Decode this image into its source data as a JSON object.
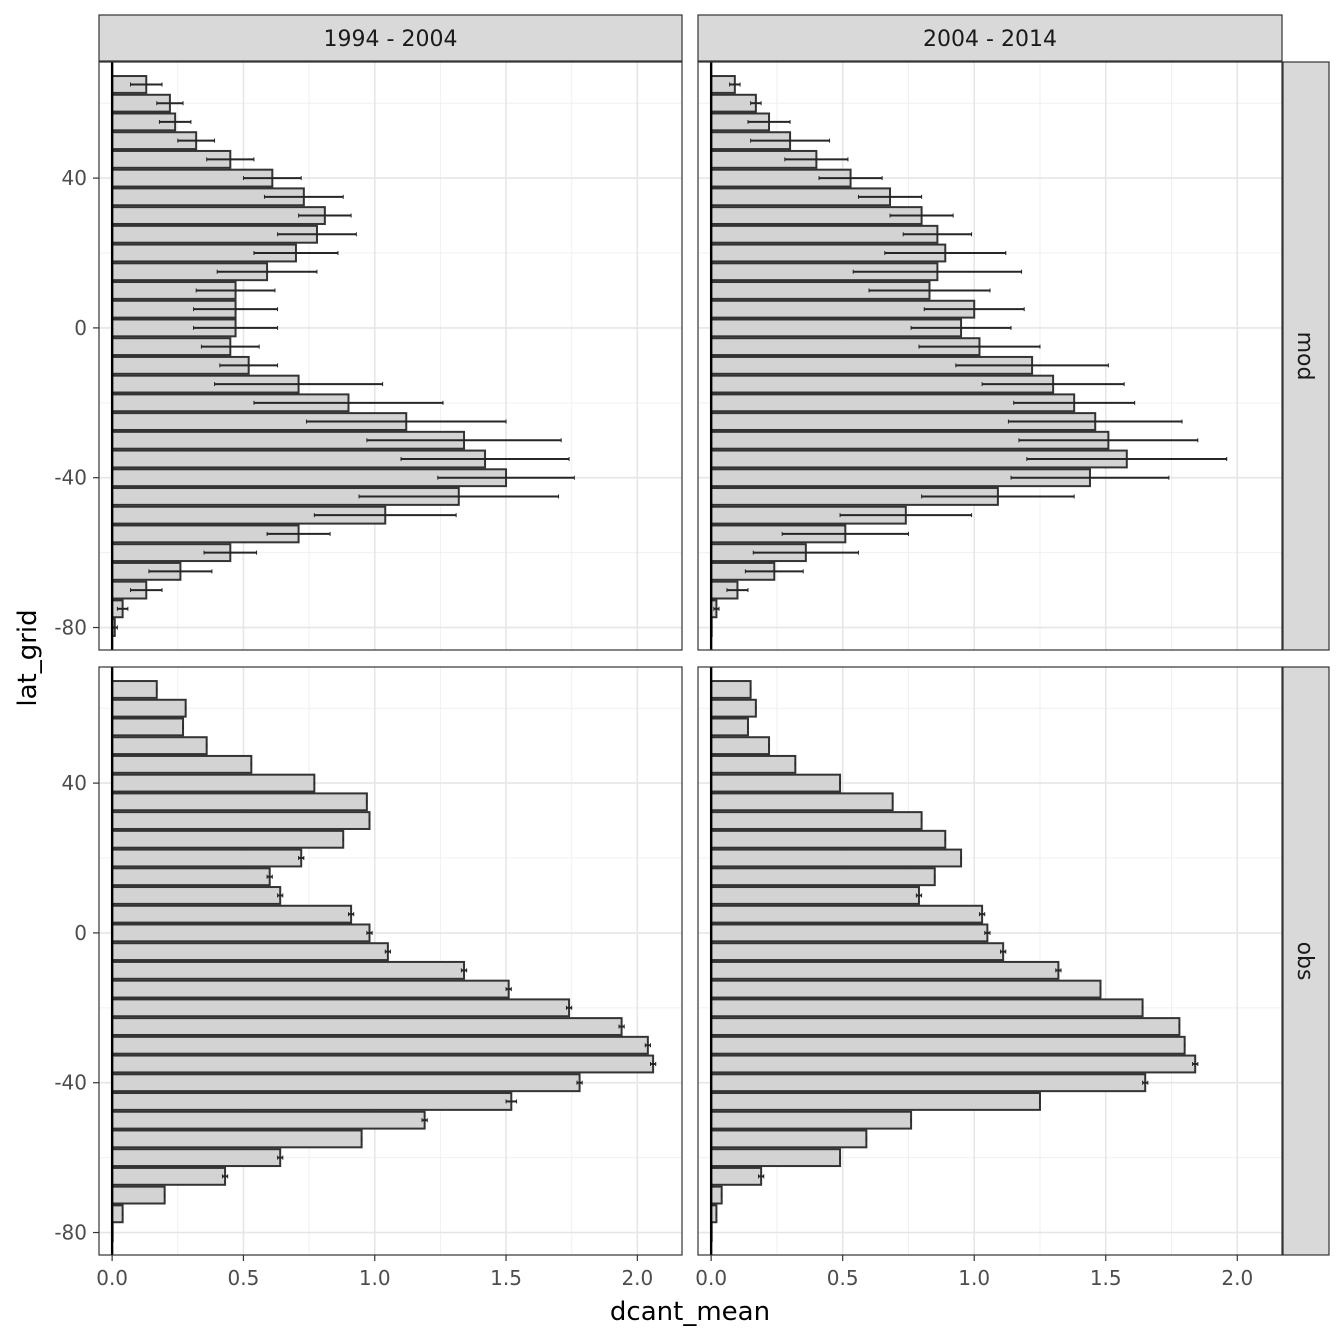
{
  "chart_data": {
    "type": "bar",
    "orientation": "horizontal",
    "facet": "grid",
    "xlabel": "dcant_mean",
    "ylabel": "lat_grid",
    "xlim": [
      -0.05,
      2.17
    ],
    "ylim": [
      -86,
      71
    ],
    "x_ticks": [
      0.0,
      0.5,
      1.0,
      1.5,
      2.0
    ],
    "x_tick_labels": [
      "0.0",
      "0.5",
      "1.0",
      "1.5",
      "2.0"
    ],
    "y_ticks": [
      -80,
      -40,
      0,
      40
    ],
    "y_tick_labels": [
      "-80",
      "-40",
      "0",
      "40"
    ],
    "grid": true,
    "bar_fill": "#d3d3d3",
    "bar_stroke": "#333333",
    "strip_fill": "#d9d9d9",
    "columns": [
      "1994 - 2004",
      "2004 - 2014"
    ],
    "rows": [
      "mod",
      "obs"
    ],
    "lat": [
      65,
      60,
      55,
      50,
      45,
      40,
      35,
      30,
      25,
      20,
      15,
      10,
      5,
      0,
      -5,
      -10,
      -15,
      -20,
      -25,
      -30,
      -35,
      -40,
      -45,
      -50,
      -55,
      -60,
      -65,
      -70,
      -75,
      -80
    ],
    "panels": [
      {
        "column": "1994 - 2004",
        "row": "mod",
        "values": [
          0.13,
          0.22,
          0.24,
          0.32,
          0.45,
          0.61,
          0.73,
          0.81,
          0.78,
          0.7,
          0.59,
          0.47,
          0.47,
          0.47,
          0.45,
          0.52,
          0.71,
          0.9,
          1.12,
          1.34,
          1.42,
          1.5,
          1.32,
          1.04,
          0.71,
          0.45,
          0.26,
          0.13,
          0.04,
          0.01
        ],
        "errors": [
          0.06,
          0.05,
          0.06,
          0.07,
          0.09,
          0.11,
          0.15,
          0.1,
          0.15,
          0.16,
          0.19,
          0.15,
          0.16,
          0.16,
          0.11,
          0.11,
          0.32,
          0.36,
          0.38,
          0.37,
          0.32,
          0.26,
          0.38,
          0.27,
          0.12,
          0.1,
          0.12,
          0.06,
          0.02,
          0.01
        ]
      },
      {
        "column": "2004 - 2014",
        "row": "mod",
        "values": [
          0.09,
          0.17,
          0.22,
          0.3,
          0.4,
          0.53,
          0.68,
          0.8,
          0.86,
          0.89,
          0.86,
          0.83,
          1.0,
          0.95,
          1.02,
          1.22,
          1.3,
          1.38,
          1.46,
          1.51,
          1.58,
          1.44,
          1.09,
          0.74,
          0.51,
          0.36,
          0.24,
          0.1,
          0.02,
          0.0
        ],
        "errors": [
          0.02,
          0.02,
          0.08,
          0.15,
          0.12,
          0.12,
          0.12,
          0.12,
          0.13,
          0.23,
          0.32,
          0.23,
          0.19,
          0.19,
          0.23,
          0.29,
          0.27,
          0.23,
          0.33,
          0.34,
          0.38,
          0.3,
          0.29,
          0.25,
          0.24,
          0.2,
          0.11,
          0.04,
          0.01,
          0.0
        ]
      },
      {
        "column": "1994 - 2004",
        "row": "obs",
        "values": [
          0.17,
          0.28,
          0.27,
          0.36,
          0.53,
          0.77,
          0.97,
          0.98,
          0.88,
          0.72,
          0.6,
          0.64,
          0.91,
          0.98,
          1.05,
          1.34,
          1.51,
          1.74,
          1.94,
          2.04,
          2.06,
          1.78,
          1.52,
          1.19,
          0.95,
          0.64,
          0.43,
          0.2,
          0.04,
          0.0
        ],
        "errors": [
          0.0,
          0.0,
          0.0,
          0.0,
          0.0,
          0.0,
          0.0,
          0.0,
          0.0,
          0.01,
          0.01,
          0.01,
          0.01,
          0.01,
          0.01,
          0.01,
          0.01,
          0.01,
          0.01,
          0.01,
          0.01,
          0.01,
          0.02,
          0.01,
          0.0,
          0.01,
          0.01,
          0.0,
          0.0,
          0.0
        ]
      },
      {
        "column": "2004 - 2014",
        "row": "obs",
        "values": [
          0.15,
          0.17,
          0.14,
          0.22,
          0.32,
          0.49,
          0.69,
          0.8,
          0.89,
          0.95,
          0.85,
          0.79,
          1.03,
          1.05,
          1.11,
          1.32,
          1.48,
          1.64,
          1.78,
          1.8,
          1.84,
          1.65,
          1.25,
          0.76,
          0.59,
          0.49,
          0.19,
          0.04,
          0.02,
          0.0
        ],
        "errors": [
          0.0,
          0.0,
          0.0,
          0.0,
          0.0,
          0.0,
          0.0,
          0.0,
          0.0,
          0.0,
          0.0,
          0.01,
          0.01,
          0.01,
          0.01,
          0.01,
          0.0,
          0.0,
          0.0,
          0.0,
          0.01,
          0.01,
          0.0,
          0.0,
          0.0,
          0.0,
          0.01,
          0.0,
          0.0,
          0.0
        ]
      }
    ]
  }
}
